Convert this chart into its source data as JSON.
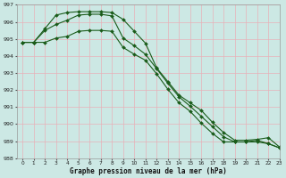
{
  "title": "Graphe pression niveau de la mer (hPa)",
  "bg_color": "#cce8e4",
  "grid_major_color": "#e8b8c0",
  "grid_minor_color": "#dde8e4",
  "line_color": "#1a5c1a",
  "xlim": [
    -0.5,
    23
  ],
  "ylim": [
    988,
    997
  ],
  "yticks": [
    988,
    989,
    990,
    991,
    992,
    993,
    994,
    995,
    996,
    997
  ],
  "xticks": [
    0,
    1,
    2,
    3,
    4,
    5,
    6,
    7,
    8,
    9,
    10,
    11,
    12,
    13,
    14,
    15,
    16,
    17,
    18,
    19,
    20,
    21,
    22,
    23
  ],
  "upper": [
    994.8,
    994.8,
    995.6,
    996.4,
    996.55,
    996.6,
    996.6,
    996.6,
    996.55,
    996.15,
    995.45,
    994.75,
    993.3,
    992.5,
    991.7,
    991.25,
    990.8,
    990.1,
    989.5,
    989.05,
    989.05,
    989.1,
    989.2,
    988.65
  ],
  "lower": [
    994.8,
    994.8,
    994.8,
    995.05,
    995.15,
    995.45,
    995.5,
    995.5,
    995.45,
    994.5,
    994.1,
    993.75,
    992.95,
    992.05,
    991.25,
    990.75,
    990.05,
    989.45,
    988.95,
    988.95,
    988.95,
    988.95,
    988.85,
    988.6
  ],
  "mid": [
    994.8,
    994.8,
    995.5,
    995.85,
    996.1,
    996.4,
    996.45,
    996.45,
    996.35,
    995.05,
    994.6,
    994.1,
    993.25,
    992.4,
    991.6,
    991.05,
    990.45,
    989.85,
    989.25,
    988.95,
    988.95,
    989.05,
    988.85,
    988.6
  ]
}
